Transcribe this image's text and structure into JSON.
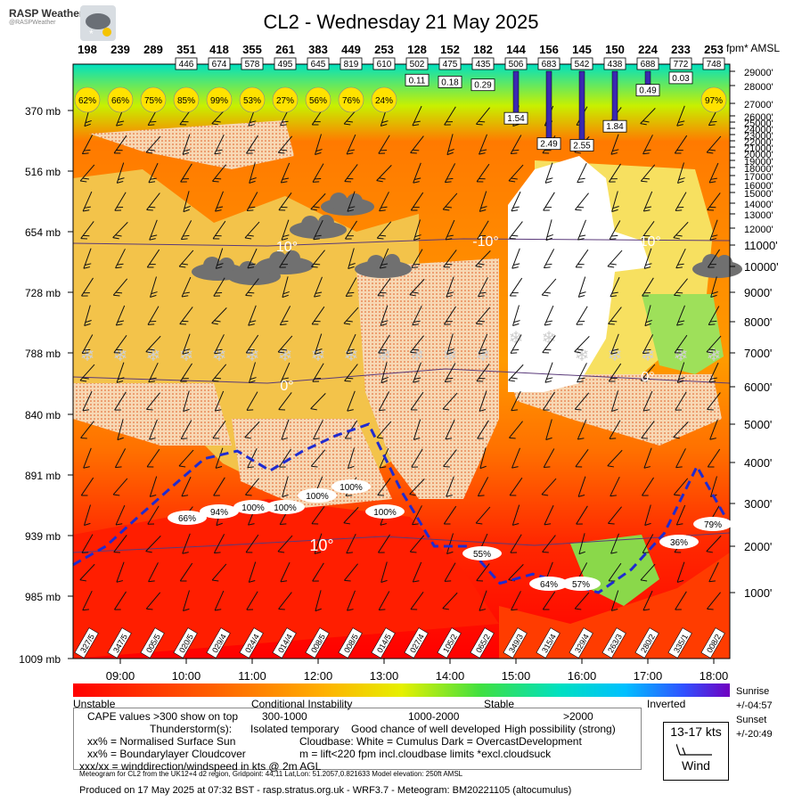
{
  "header": {
    "logo_title": "RASP Weather",
    "logo_handle": "@RASPWeather",
    "title": "CL2 - Wednesday 21 May 2025"
  },
  "chart_data": {
    "type": "heatmap",
    "title": "CL2 - Wednesday 21 May 2025",
    "x_ticks": [
      "09:00",
      "10:00",
      "11:00",
      "12:00",
      "13:00",
      "14:00",
      "15:00",
      "16:00",
      "17:00",
      "18:00"
    ],
    "pressure_labels": [
      "370 mb",
      "516 mb",
      "654 mb",
      "728 mb",
      "788 mb",
      "840 mb",
      "891 mb",
      "939 mb",
      "985 mb",
      "1009 mb"
    ],
    "altitude_unit": "fpm* AMSL",
    "altitude_labels": [
      "29000'",
      "28000'",
      "27000'",
      "26000'",
      "25000'",
      "24000'",
      "23000'",
      "22000'",
      "21000'",
      "20000'",
      "19000'",
      "18000'",
      "17000'",
      "16000'",
      "15000'",
      "14000'",
      "13000'",
      "12000'",
      "11000'",
      "10000'",
      "9000'",
      "8000'",
      "7000'",
      "6000'",
      "5000'",
      "4000'",
      "3000'",
      "2000'",
      "1000'"
    ],
    "cape_values": [
      "198",
      "239",
      "289",
      "351",
      "418",
      "355",
      "261",
      "383",
      "449",
      "253",
      "128",
      "152",
      "182",
      "144",
      "156",
      "145",
      "150",
      "224",
      "233",
      "253"
    ],
    "cloudbase_boxes": [
      "446",
      "674",
      "578",
      "495",
      "645",
      "819",
      "610",
      "502",
      "475",
      "435",
      "506",
      "683",
      "542",
      "438",
      "688",
      "772",
      "748"
    ],
    "precip_values": [
      "0.11",
      "0.18",
      "0.29",
      "1.54",
      "2.49",
      "2.55",
      "1.84",
      "0.49",
      "0.03"
    ],
    "sun_percent_top": [
      "62%",
      "66%",
      "75%",
      "85%",
      "99%",
      "53%",
      "27%",
      "56%",
      "76%",
      "24%",
      "97%"
    ],
    "bl_cloud_percent": [
      "66%",
      "94%",
      "100%",
      "100%",
      "100%",
      "100%",
      "100%",
      "55%",
      "64%",
      "57%",
      "36%",
      "79%"
    ],
    "surface_winds": [
      "327/5",
      "347/5",
      "005/5",
      "020/5",
      "029/4",
      "024/4",
      "014/4",
      "008/5",
      "008/5",
      "014/5",
      "027/4",
      "105/2",
      "065/2",
      "349/3",
      "315/4",
      "329/4",
      "263/3",
      "280/2",
      "335/1",
      "008/2"
    ],
    "isotherm_labels": [
      "10°",
      "-10°",
      "-10°",
      "0°",
      "0°",
      "10°"
    ],
    "boundary_layer_top_ft": [
      1600,
      2000,
      2700,
      3400,
      4100,
      4300,
      3800,
      4300,
      4700,
      5000,
      3300,
      2000,
      2000,
      1200,
      1400,
      1200,
      1000,
      1500,
      2300,
      3900,
      2500
    ],
    "colorbar": {
      "labels": [
        "Unstable",
        "Conditional Instability",
        "Stable",
        "Inverted"
      ],
      "colors": [
        "#ff0000",
        "#ff5000",
        "#ff8c00",
        "#ffd000",
        "#e6f000",
        "#9cf000",
        "#30d830",
        "#00e0a0",
        "#00d8f0",
        "#2090ff",
        "#4040ff",
        "#7000c0"
      ]
    }
  },
  "legend": {
    "cape_line": "CAPE values >300 show on top",
    "cape_r1": "300-1000",
    "cape_r2": "1000-2000",
    "cape_r3": ">2000",
    "thunder_label": "Thunderstorm(s):",
    "thunder_1": "Isolated temporary",
    "thunder_2": "Good chance of well developed",
    "thunder_3": "High possibility (strong)",
    "sun_line": "xx% = Normalised Surface Sun",
    "cloudbase_line": "Cloudbase: White = Cumulus    Dark = OvercastDevelopment",
    "blcloud_line": "xx% = Boundarylayer Cloudcover",
    "lift_line": "m = lift<220 fpm incl.cloudbase limits *excl.cloudsuck",
    "wind_line": "xxx/xx = winddirection/windspeed in kts @ 2m AGL"
  },
  "wind_key": {
    "speed": "13-17 kts",
    "label": "Wind"
  },
  "sun": {
    "sunrise": "Sunrise",
    "sunrise_val": "+/-04:57",
    "sunset": "Sunset",
    "sunset_val": "+/-20:49"
  },
  "footer": {
    "model_info": "Meteogram for CL2 from the UK12+4 d2 region, Gridpoint: 44,11 Lat,Lon: 51.2057,0.821633 Model elevation: 250ft AMSL",
    "produced": "Produced on 17 May 2025 at 07:32 BST - rasp.stratus.org.uk - WRF3.7 - Meteogram: BM20221105 (altocumulus)"
  }
}
